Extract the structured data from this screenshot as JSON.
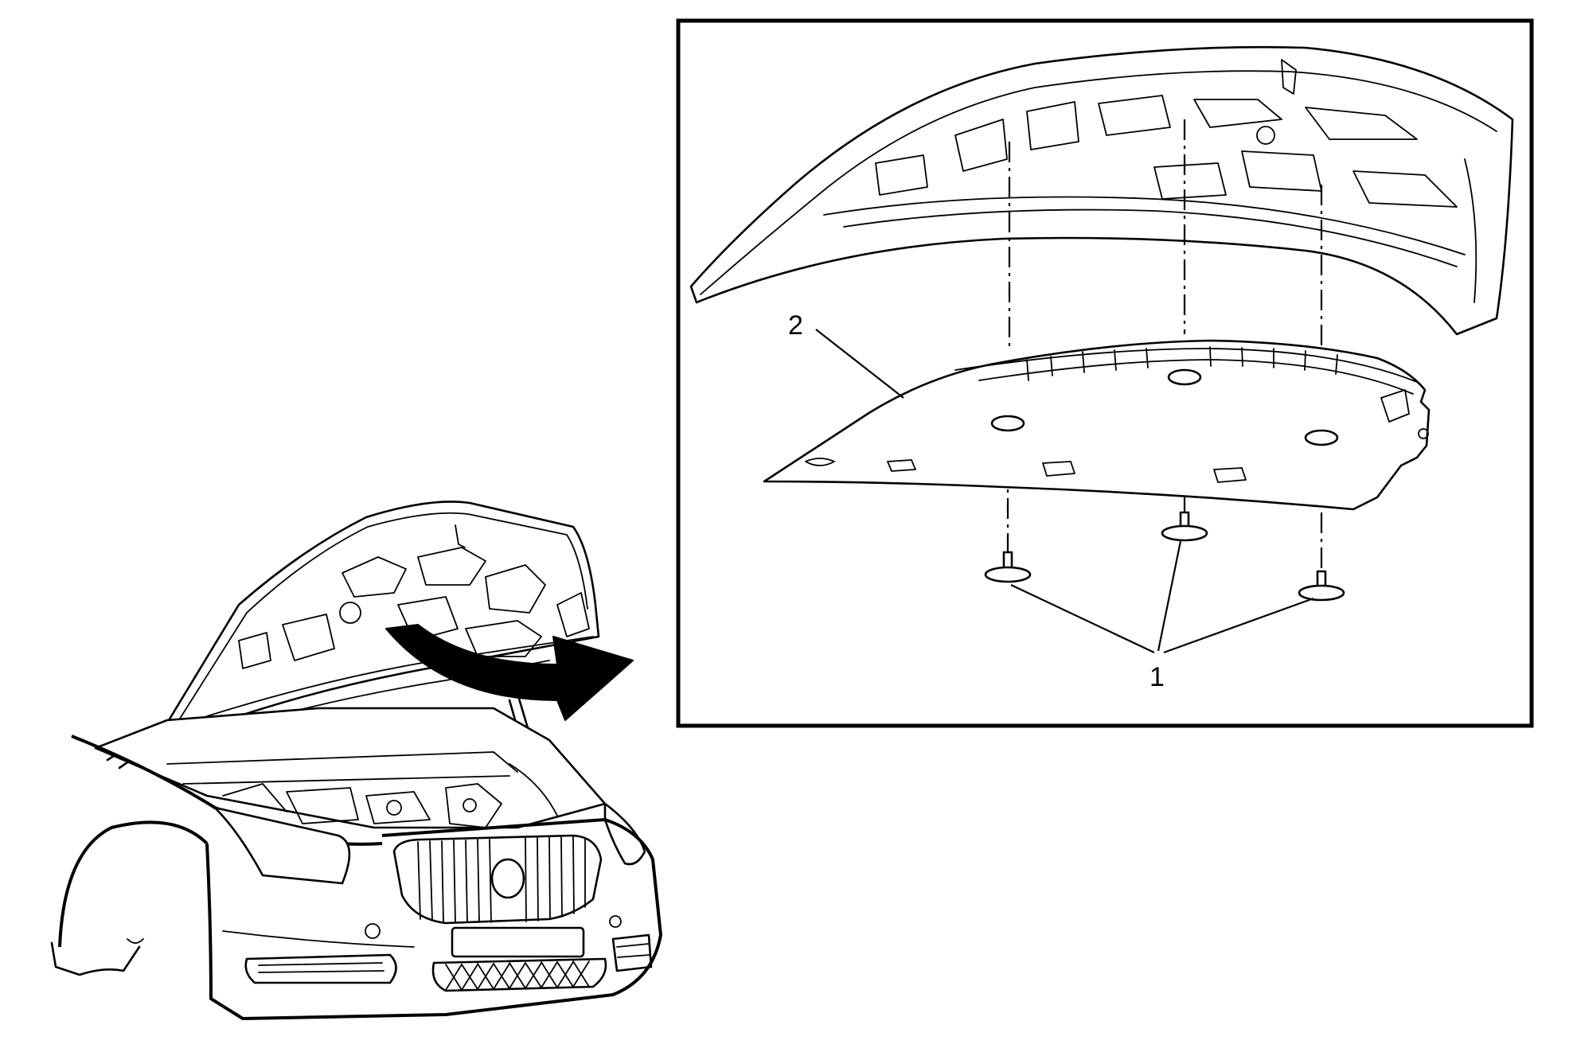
{
  "callouts": {
    "fasteners": "1",
    "insulator": "2"
  },
  "colors": {
    "line": "#000000",
    "background": "#ffffff"
  }
}
